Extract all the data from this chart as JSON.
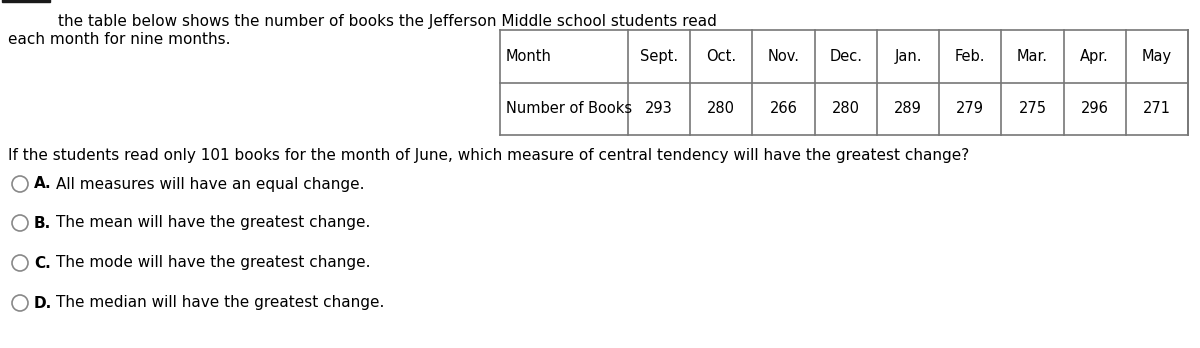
{
  "intro_line1": "the table below shows the number of books the Jefferson Middle school students read",
  "intro_line2": "each month for nine months.",
  "months": [
    "Month",
    "Sept.",
    "Oct.",
    "Nov.",
    "Dec.",
    "Jan.",
    "Feb.",
    "Mar.",
    "Apr.",
    "May"
  ],
  "books_label": "Number of Books",
  "books_values": [
    293,
    280,
    266,
    280,
    289,
    279,
    275,
    296,
    271
  ],
  "question": "If the students read only 101 books for the month of June, which measure of central tendency will have the greatest change?",
  "options": [
    {
      "label": "A.",
      "text": "All measures will have an equal change."
    },
    {
      "label": "B.",
      "text": "The mean will have the greatest change."
    },
    {
      "label": "C.",
      "text": "The mode will have the greatest change."
    },
    {
      "label": "D.",
      "text": "The median will have the greatest change."
    }
  ],
  "bg_color": "#ffffff",
  "text_color": "#000000",
  "table_border_color": "#777777",
  "fig_width": 12.0,
  "fig_height": 3.48,
  "dpi": 100
}
